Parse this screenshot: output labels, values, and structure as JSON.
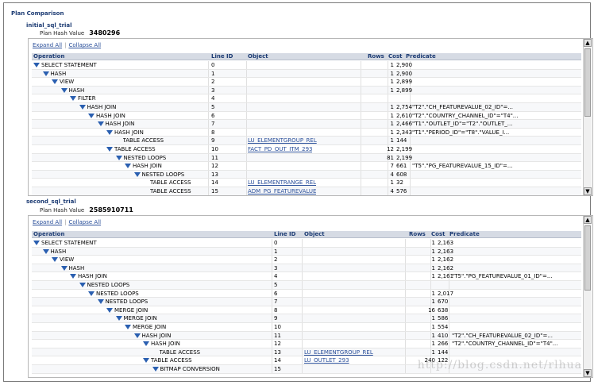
{
  "page": {
    "title": "Plan Comparison",
    "watermark": "http://blog.csdn.net/rlhua"
  },
  "colors": {
    "header_bg": "#d6dbe4",
    "link": "#2a4f9a",
    "title": "#1c3b73",
    "triangle": "#2a5fb0"
  },
  "links": {
    "expand_all": "Expand All",
    "collapse_all": "Collapse All"
  },
  "columns": {
    "operation": "Operation",
    "line_id": "Line ID",
    "object": "Object",
    "rows": "Rows",
    "cost": "Cost",
    "predicate": "Predicate"
  },
  "trials": [
    {
      "name": "initial_sql_trial",
      "plan_hash_label": "Plan Hash Value",
      "plan_hash_value": "3480296",
      "rows": [
        {
          "depth": 0,
          "toggle": true,
          "op": "SELECT STATEMENT",
          "id": "0",
          "obj": "",
          "rows": "1",
          "cost": "2,900",
          "pred": ""
        },
        {
          "depth": 1,
          "toggle": true,
          "op": "HASH",
          "id": "1",
          "obj": "",
          "rows": "1",
          "cost": "2,900",
          "pred": ""
        },
        {
          "depth": 2,
          "toggle": true,
          "op": "VIEW",
          "id": "2",
          "obj": "",
          "rows": "1",
          "cost": "2,899",
          "pred": ""
        },
        {
          "depth": 3,
          "toggle": true,
          "op": "HASH",
          "id": "3",
          "obj": "",
          "rows": "1",
          "cost": "2,899",
          "pred": ""
        },
        {
          "depth": 4,
          "toggle": true,
          "op": "FILTER",
          "id": "4",
          "obj": "",
          "rows": "",
          "cost": "",
          "pred": ""
        },
        {
          "depth": 5,
          "toggle": true,
          "op": "HASH JOIN",
          "id": "5",
          "obj": "",
          "rows": "1",
          "cost": "2,754",
          "pred": "\"T2\".\"CH_FEATUREVALUE_02_ID\"=..."
        },
        {
          "depth": 6,
          "toggle": true,
          "op": "HASH JOIN",
          "id": "6",
          "obj": "",
          "rows": "1",
          "cost": "2,610",
          "pred": "\"T2\".\"COUNTRY_CHANNEL_ID\"=\"T4\"..."
        },
        {
          "depth": 7,
          "toggle": true,
          "op": "HASH JOIN",
          "id": "7",
          "obj": "",
          "rows": "1",
          "cost": "2,466",
          "pred": "\"T1\".\"OUTLET_ID\"=\"T2\".\"OUTLET_..."
        },
        {
          "depth": 8,
          "toggle": true,
          "op": "HASH JOIN",
          "id": "8",
          "obj": "",
          "rows": "1",
          "cost": "2,343",
          "pred": "\"T1\".\"PERIOD_ID\"=\"T8\".\"VALUE_I..."
        },
        {
          "depth": 9,
          "toggle": false,
          "op": "TABLE ACCESS",
          "id": "9",
          "obj": "LU_ELEMENTGROUP_REL",
          "rows": "1",
          "cost": "144",
          "pred": ""
        },
        {
          "depth": 8,
          "toggle": true,
          "op": "TABLE ACCESS",
          "id": "10",
          "obj": "FACT_PD_OUT_ITM_293",
          "rows": "12",
          "cost": "2,199",
          "pred": ""
        },
        {
          "depth": 9,
          "toggle": true,
          "op": "NESTED LOOPS",
          "id": "11",
          "obj": "",
          "rows": "81",
          "cost": "2,199",
          "pred": ""
        },
        {
          "depth": 10,
          "toggle": true,
          "op": "HASH JOIN",
          "id": "12",
          "obj": "",
          "rows": "7",
          "cost": "661",
          "pred": "\"T5\".\"PG_FEATUREVALUE_15_ID\"=..."
        },
        {
          "depth": 11,
          "toggle": true,
          "op": "NESTED LOOPS",
          "id": "13",
          "obj": "",
          "rows": "4",
          "cost": "608",
          "pred": ""
        },
        {
          "depth": 12,
          "toggle": false,
          "op": "TABLE ACCESS",
          "id": "14",
          "obj": "LU_ELEMENTRANGE_REL",
          "rows": "1",
          "cost": "32",
          "pred": ""
        },
        {
          "depth": 12,
          "toggle": false,
          "op": "TABLE ACCESS",
          "id": "15",
          "obj": "ADM_PG_FEATUREVALUE",
          "rows": "4",
          "cost": "576",
          "pred": ""
        }
      ]
    },
    {
      "name": "second_sql_trial",
      "plan_hash_label": "Plan Hash Value",
      "plan_hash_value": "2585910711",
      "rows": [
        {
          "depth": 0,
          "toggle": true,
          "op": "SELECT STATEMENT",
          "id": "0",
          "obj": "",
          "rows": "1",
          "cost": "2,163",
          "pred": ""
        },
        {
          "depth": 1,
          "toggle": true,
          "op": "HASH",
          "id": "1",
          "obj": "",
          "rows": "1",
          "cost": "2,163",
          "pred": ""
        },
        {
          "depth": 2,
          "toggle": true,
          "op": "VIEW",
          "id": "2",
          "obj": "",
          "rows": "1",
          "cost": "2,162",
          "pred": ""
        },
        {
          "depth": 3,
          "toggle": true,
          "op": "HASH",
          "id": "3",
          "obj": "",
          "rows": "1",
          "cost": "2,162",
          "pred": ""
        },
        {
          "depth": 4,
          "toggle": true,
          "op": "HASH JOIN",
          "id": "4",
          "obj": "",
          "rows": "1",
          "cost": "2,161",
          "pred": "\"T5\".\"PG_FEATUREVALUE_01_ID\"=..."
        },
        {
          "depth": 5,
          "toggle": true,
          "op": "NESTED LOOPS",
          "id": "5",
          "obj": "",
          "rows": "",
          "cost": "",
          "pred": ""
        },
        {
          "depth": 6,
          "toggle": true,
          "op": "NESTED LOOPS",
          "id": "6",
          "obj": "",
          "rows": "1",
          "cost": "2,017",
          "pred": ""
        },
        {
          "depth": 7,
          "toggle": true,
          "op": "NESTED LOOPS",
          "id": "7",
          "obj": "",
          "rows": "1",
          "cost": "670",
          "pred": ""
        },
        {
          "depth": 8,
          "toggle": true,
          "op": "MERGE JOIN",
          "id": "8",
          "obj": "",
          "rows": "16",
          "cost": "638",
          "pred": ""
        },
        {
          "depth": 9,
          "toggle": true,
          "op": "MERGE JOIN",
          "id": "9",
          "obj": "",
          "rows": "1",
          "cost": "586",
          "pred": ""
        },
        {
          "depth": 10,
          "toggle": true,
          "op": "MERGE JOIN",
          "id": "10",
          "obj": "",
          "rows": "1",
          "cost": "554",
          "pred": ""
        },
        {
          "depth": 11,
          "toggle": true,
          "op": "HASH JOIN",
          "id": "11",
          "obj": "",
          "rows": "1",
          "cost": "410",
          "pred": "\"T2\".\"CH_FEATUREVALUE_02_ID\"=..."
        },
        {
          "depth": 12,
          "toggle": true,
          "op": "HASH JOIN",
          "id": "12",
          "obj": "",
          "rows": "1",
          "cost": "266",
          "pred": "\"T2\".\"COUNTRY_CHANNEL_ID\"=\"T4\"..."
        },
        {
          "depth": 13,
          "toggle": false,
          "op": "TABLE ACCESS",
          "id": "13",
          "obj": "LU_ELEMENTGROUP_REL",
          "rows": "1",
          "cost": "144",
          "pred": ""
        },
        {
          "depth": 12,
          "toggle": true,
          "op": "TABLE ACCESS",
          "id": "14",
          "obj": "LU_OUTLET_293",
          "rows": "240",
          "cost": "122",
          "pred": ""
        },
        {
          "depth": 13,
          "toggle": true,
          "op": "BITMAP CONVERSION",
          "id": "15",
          "obj": "",
          "rows": "",
          "cost": "",
          "pred": ""
        }
      ]
    }
  ]
}
